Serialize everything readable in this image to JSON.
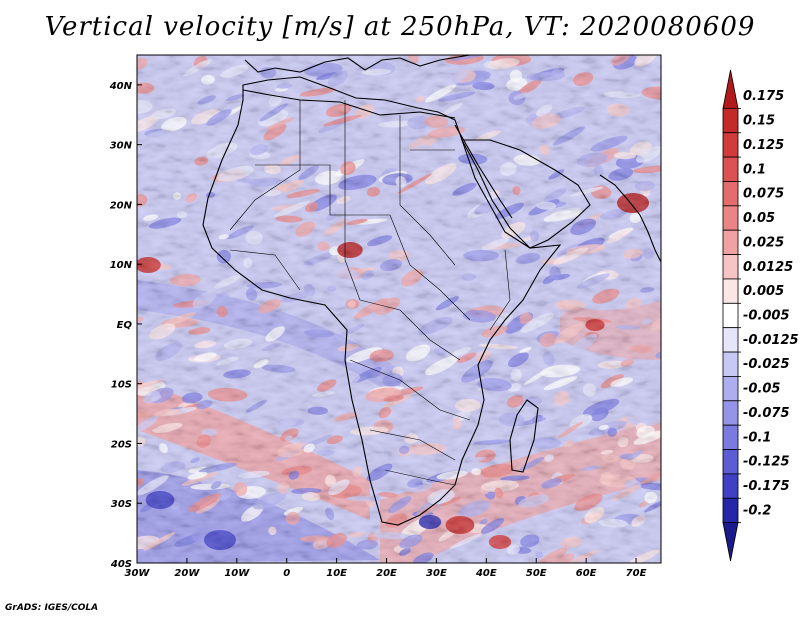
{
  "title": "Vertical velocity [m/s] at 250hPa, VT: 2020080609",
  "footer": "GrADS: IGES/COLA",
  "map": {
    "lon_range": [
      -30,
      75
    ],
    "lat_range": [
      -40,
      45
    ],
    "x_ticks": [
      "30W",
      "20W",
      "10W",
      "0",
      "10E",
      "20E",
      "30E",
      "40E",
      "50E",
      "60E",
      "70E"
    ],
    "x_tick_values": [
      -30,
      -20,
      -10,
      0,
      10,
      20,
      30,
      40,
      50,
      60,
      70
    ],
    "y_ticks": [
      "40N",
      "30N",
      "20N",
      "10N",
      "EQ",
      "10S",
      "20S",
      "30S",
      "40S"
    ],
    "y_tick_values": [
      40,
      30,
      20,
      10,
      0,
      -10,
      -20,
      -30,
      -40
    ]
  },
  "colorbar": {
    "labels": [
      "0.175",
      "0.15",
      "0.125",
      "0.1",
      "0.075",
      "0.05",
      "0.025",
      "0.0125",
      "0.005",
      "-0.005",
      "-0.0125",
      "-0.025",
      "-0.05",
      "-0.075",
      "-0.1",
      "-0.125",
      "-0.175",
      "-0.2"
    ],
    "colors": [
      "#b11a1a",
      "#c42a2a",
      "#d13b3b",
      "#dc5252",
      "#e46c6c",
      "#ea8585",
      "#f0a1a1",
      "#f6c4c4",
      "#fbe6e6",
      "#ffffff",
      "#e6e6fb",
      "#c8c8f4",
      "#aeaeee",
      "#9494e8",
      "#7a7ae0",
      "#5c5cd4",
      "#4040c4",
      "#2626a8",
      "#1a1a8c"
    ]
  },
  "chart_data": {
    "type": "heatmap",
    "title": "Vertical velocity [m/s] at 250hPa, VT: 2020080609",
    "variable": "Vertical velocity",
    "units": "m/s",
    "level": "250hPa",
    "valid_time": "2020080609",
    "xlabel": "",
    "ylabel": "",
    "xlim": [
      -30,
      75
    ],
    "ylim": [
      -40,
      45
    ],
    "levels": [
      -0.2,
      -0.175,
      -0.125,
      -0.1,
      -0.075,
      -0.05,
      -0.025,
      -0.0125,
      -0.005,
      0.005,
      0.0125,
      0.025,
      0.05,
      0.075,
      0.1,
      0.125,
      0.15,
      0.175
    ]
  },
  "colors": {
    "upward": "#d13b3b",
    "downward": "#4040c4",
    "neutral": "#ffffff"
  }
}
